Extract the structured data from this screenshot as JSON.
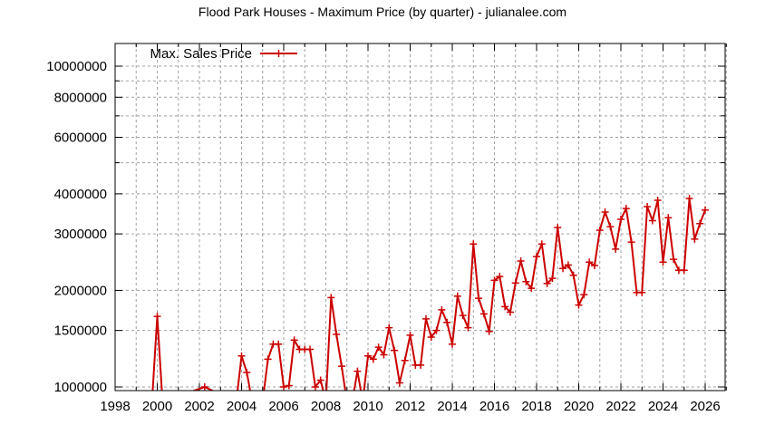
{
  "chart_data": {
    "type": "line",
    "title": "Flood Park Houses - Maximum Price (by quarter) - julianalee.com",
    "xlabel": "",
    "ylabel": "",
    "yscale": "log",
    "xlim": [
      1998,
      2027
    ],
    "ylim": [
      980000,
      11500000
    ],
    "grid": true,
    "legend": {
      "position": "top-left",
      "entries": [
        "Max. Sales Price"
      ]
    },
    "x_ticks": [
      "1998",
      "2000",
      "2002",
      "2004",
      "2006",
      "2008",
      "2010",
      "2012",
      "2014",
      "2016",
      "2018",
      "2020",
      "2022",
      "2024",
      "2026"
    ],
    "y_ticks": [
      "1000000",
      "1500000",
      "2000000",
      "3000000",
      "4000000",
      "6000000",
      "8000000",
      "10000000"
    ],
    "series": [
      {
        "name": "Max. Sales Price",
        "color": "#cc0000",
        "x": [
          1999.75,
          2000.0,
          2000.25,
          2002.25,
          2003.75,
          2004.0,
          2004.25,
          2004.5,
          2005.0,
          2005.25,
          2005.5,
          2005.75,
          2006.0,
          2006.25,
          2006.5,
          2006.75,
          2007.0,
          2007.25,
          2007.5,
          2007.75,
          2008.0,
          2008.25,
          2008.5,
          2008.75,
          2009.0,
          2009.25,
          2009.5,
          2009.75,
          2010.0,
          2010.25,
          2010.5,
          2010.75,
          2011.0,
          2011.25,
          2011.5,
          2011.75,
          2012.0,
          2012.25,
          2012.5,
          2012.75,
          2013.0,
          2013.25,
          2013.5,
          2013.75,
          2014.0,
          2014.25,
          2014.5,
          2014.75,
          2015.0,
          2015.25,
          2015.5,
          2015.75,
          2016.0,
          2016.25,
          2016.5,
          2016.75,
          2017.0,
          2017.25,
          2017.5,
          2017.75,
          2018.0,
          2018.25,
          2018.5,
          2018.75,
          2019.0,
          2019.25,
          2019.5,
          2019.75,
          2020.0,
          2020.25,
          2020.5,
          2020.75,
          2021.0,
          2021.25,
          2021.5,
          2021.75,
          2022.0,
          2022.25,
          2022.5,
          2022.75,
          2023.0,
          2023.25,
          2023.5,
          2023.75,
          2024.0,
          2024.25,
          2024.5,
          2024.75,
          2025.0,
          2025.25,
          2025.5,
          2025.75,
          2026.0
        ],
        "values": [
          900000,
          1660000,
          900000,
          1000000,
          900000,
          1250000,
          1110000,
          900000,
          900000,
          1220000,
          1360000,
          1360000,
          1000000,
          1010000,
          1400000,
          1310000,
          1310000,
          1310000,
          1000000,
          1050000,
          900000,
          1900000,
          1460000,
          1160000,
          900000,
          900000,
          1120000,
          900000,
          1250000,
          1220000,
          1330000,
          1260000,
          1530000,
          1300000,
          1030000,
          1210000,
          1450000,
          1170000,
          1170000,
          1630000,
          1430000,
          1500000,
          1740000,
          1590000,
          1360000,
          1920000,
          1670000,
          1530000,
          2790000,
          1890000,
          1690000,
          1490000,
          2150000,
          2210000,
          1780000,
          1710000,
          2110000,
          2470000,
          2130000,
          2030000,
          2550000,
          2790000,
          2100000,
          2180000,
          3140000,
          2340000,
          2400000,
          2230000,
          1800000,
          1940000,
          2450000,
          2390000,
          3080000,
          3510000,
          3160000,
          2690000,
          3330000,
          3600000,
          2830000,
          1970000,
          1970000,
          3650000,
          3300000,
          3820000,
          2450000,
          3370000,
          2500000,
          2310000,
          2310000,
          3870000,
          2890000,
          3230000,
          3560000
        ]
      }
    ]
  }
}
